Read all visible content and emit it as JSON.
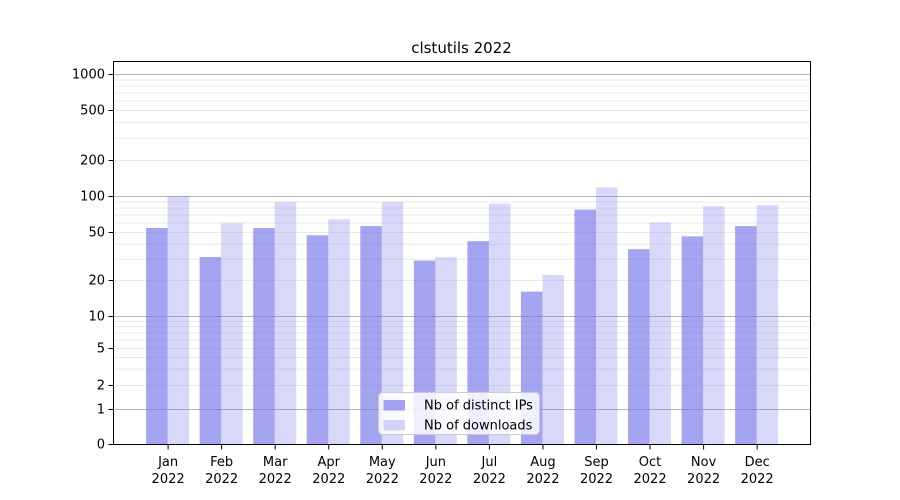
{
  "chart_data": {
    "type": "bar",
    "title": "clstutils 2022",
    "months": [
      "Jan",
      "Feb",
      "Mar",
      "Apr",
      "May",
      "Jun",
      "Jul",
      "Aug",
      "Sep",
      "Oct",
      "Nov",
      "Dec"
    ],
    "year_line": "2022",
    "categories": [
      "Jan 2022",
      "Feb 2022",
      "Mar 2022",
      "Apr 2022",
      "May 2022",
      "Jun 2022",
      "Jul 2022",
      "Aug 2022",
      "Sep 2022",
      "Oct 2022",
      "Nov 2022",
      "Dec 2022"
    ],
    "series": [
      {
        "name": "Nb of distinct IPs",
        "values": [
          54,
          31,
          54,
          47,
          56,
          29,
          42,
          16,
          77,
          36,
          46,
          56
        ],
        "color": "rgba(115,115,234,0.65)"
      },
      {
        "name": "Nb of downloads",
        "values": [
          100,
          59,
          89,
          64,
          89,
          31,
          86,
          22,
          118,
          60,
          82,
          84
        ],
        "color": "rgba(115,115,234,0.28)"
      }
    ],
    "y_axis": {
      "scale": "symlog-like",
      "ticks": [
        0,
        1,
        2,
        5,
        10,
        20,
        50,
        100,
        200,
        500,
        1000
      ],
      "major_gridline_values": [
        1,
        10,
        100,
        1000
      ],
      "ylim": [
        0,
        1400
      ]
    },
    "xlabel": "",
    "ylabel": "",
    "grid": true,
    "legend_position": "lower center",
    "colors": {
      "major_grid": "#b5b5b5",
      "minor_grid": "#eaeaea",
      "spine": "#000000",
      "legend_border": "#cccccc"
    }
  }
}
